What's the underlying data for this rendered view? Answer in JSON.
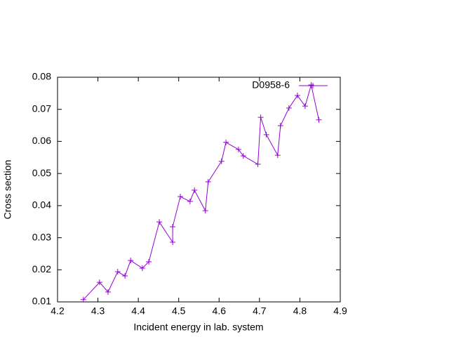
{
  "chart_data": {
    "type": "line",
    "xlabel": "Incident energy in lab. system",
    "ylabel": "Cross section",
    "x": [
      4.264,
      4.304,
      4.325,
      4.349,
      4.367,
      4.381,
      4.41,
      4.426,
      4.452,
      4.485,
      4.485,
      4.504,
      4.528,
      4.539,
      4.566,
      4.573,
      4.606,
      4.617,
      4.648,
      4.66,
      4.696,
      4.703,
      4.717,
      4.745,
      4.752,
      4.773,
      4.794,
      4.813,
      4.828,
      4.847
    ],
    "series": [
      {
        "name": "D0958-6",
        "color": "#9400d3",
        "values": [
          0.0107,
          0.0161,
          0.0131,
          0.0194,
          0.0181,
          0.0229,
          0.0205,
          0.0225,
          0.0349,
          0.0286,
          0.0334,
          0.0428,
          0.0413,
          0.0448,
          0.0384,
          0.0474,
          0.0538,
          0.0597,
          0.0575,
          0.0555,
          0.0529,
          0.0675,
          0.0621,
          0.0557,
          0.0649,
          0.0704,
          0.0743,
          0.071,
          0.0776,
          0.0667
        ]
      }
    ],
    "xlim": [
      4.2,
      4.9
    ],
    "xticks": [
      4.2,
      4.3,
      4.4,
      4.5,
      4.6,
      4.7,
      4.8,
      4.9
    ],
    "ylim": [
      0.01,
      0.08
    ],
    "yticks": [
      0.01,
      0.02,
      0.03,
      0.04,
      0.05,
      0.06,
      0.07,
      0.08
    ],
    "grid": false,
    "legend": "top-right"
  }
}
